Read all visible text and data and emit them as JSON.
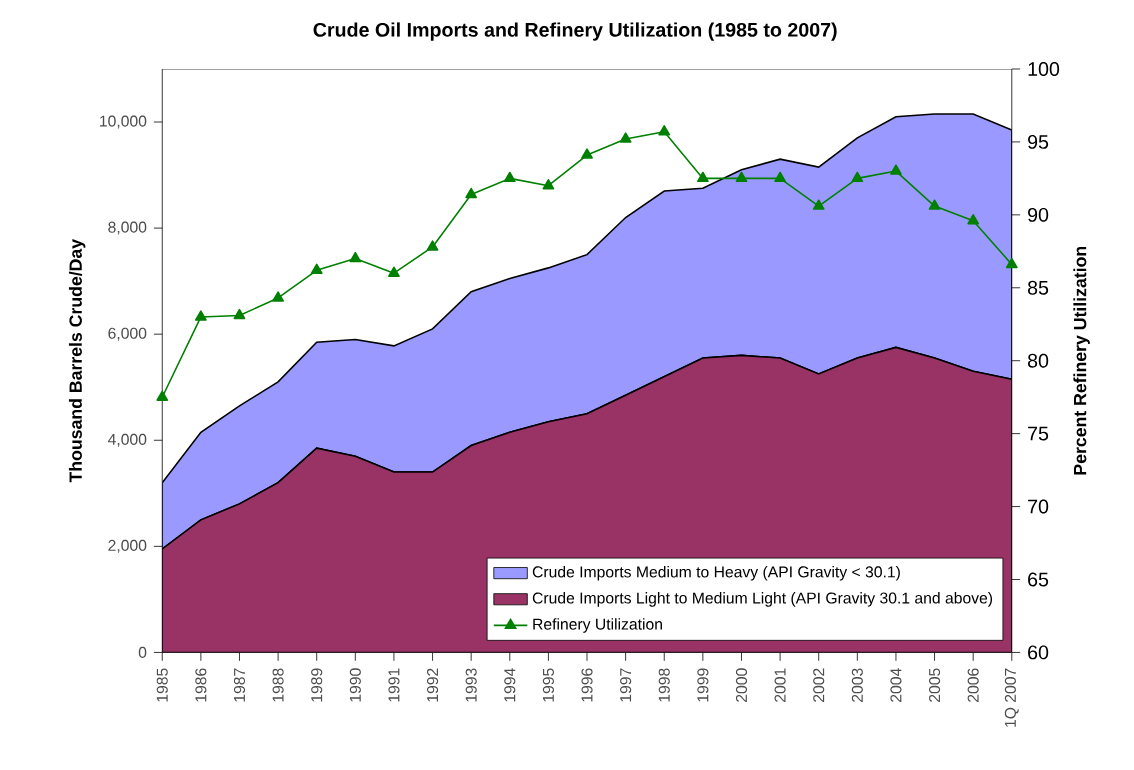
{
  "chart_data": {
    "type": "area",
    "title": "Crude Oil Imports and Refinery Utilization (1985 to 2007)",
    "ylabel": "Thousand Barrels Crude/Day",
    "y2label": "Percent Refinery Utilization",
    "categories": [
      "1985",
      "1986",
      "1987",
      "1988",
      "1989",
      "1990",
      "1991",
      "1992",
      "1993",
      "1994",
      "1995",
      "1996",
      "1997",
      "1998",
      "1999",
      "2000",
      "2001",
      "2002",
      "2003",
      "2004",
      "2005",
      "2006",
      "1Q 2007"
    ],
    "stacked": true,
    "series": [
      {
        "name": "Crude Imports Light to Medium Light (API Gravity 30.1 and above)",
        "color": "#993366",
        "values": [
          1950,
          2500,
          2800,
          3200,
          3850,
          3700,
          3400,
          3400,
          3900,
          4150,
          4350,
          4500,
          4850,
          5200,
          5550,
          5600,
          5550,
          5250,
          5550,
          5750,
          5550,
          5300,
          5150
        ]
      },
      {
        "name": "Crude Imports Medium to Heavy (API Gravity < 30.1)",
        "color": "#9999ff",
        "values": [
          1250,
          1650,
          1850,
          1900,
          2000,
          2200,
          2380,
          2700,
          2900,
          2900,
          2900,
          3000,
          3350,
          3500,
          3200,
          3500,
          3750,
          3900,
          4150,
          4350,
          4600,
          4850,
          4700
        ]
      },
      {
        "name": "Refinery Utilization",
        "type": "line",
        "axis": "y2",
        "color": "#008000",
        "marker": "triangle",
        "values": [
          77.5,
          83.0,
          83.1,
          84.3,
          86.2,
          87.0,
          86.0,
          87.8,
          91.4,
          92.5,
          92.0,
          94.1,
          95.2,
          95.7,
          92.5,
          92.5,
          92.5,
          90.6,
          92.5,
          93.0,
          90.6,
          89.6,
          86.6
        ]
      }
    ],
    "ylim": [
      0,
      11000
    ],
    "yticks": [
      0,
      {
        "value": 2000,
        "label": "2,000"
      },
      {
        "value": 4000,
        "label": "4,000"
      },
      {
        "value": 6000,
        "label": "6,000"
      },
      {
        "value": 8000,
        "label": "8,000"
      },
      {
        "value": 10000,
        "label": "10,000"
      }
    ],
    "y2lim": [
      60,
      100
    ],
    "y2ticks": [
      60,
      65,
      70,
      75,
      80,
      85,
      90,
      95,
      100
    ],
    "legend": "bottom right",
    "grid": false
  }
}
